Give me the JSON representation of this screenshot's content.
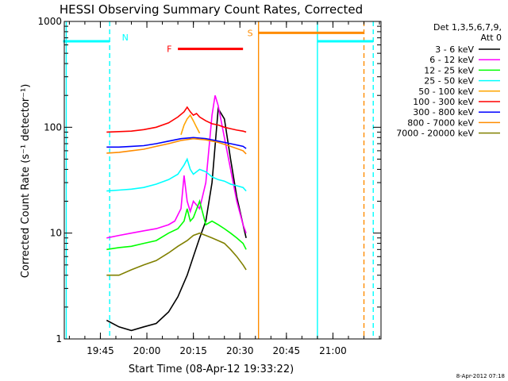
{
  "chart_data": {
    "type": "line",
    "title": "HESSI Observing Summary Count Rates, Corrected",
    "xlabel": "Start Time (08-Apr-12 19:33:22)",
    "ylabel": "Corrected Count Rate (s⁻¹ detector⁻¹)",
    "y_scale": "log",
    "ylim": [
      1,
      1000
    ],
    "xlim": [
      "19:33:22",
      "21:15:30"
    ],
    "x_ticks": [
      "19:45",
      "20:00",
      "20:15",
      "20:30",
      "20:45",
      "21:00"
    ],
    "y_ticks": [
      "1",
      "10",
      "100",
      "1000"
    ],
    "grid": false,
    "legend_position": "right",
    "legend_header": [
      "Det 1,3,5,6,7,9,",
      "Att 0"
    ],
    "date_stamp": "8-Apr-2012 07:18",
    "series": [
      {
        "name": "3 - 6 keV",
        "color": "#000000",
        "x": [
          "19:47",
          "19:51",
          "19:55",
          "19:59",
          "20:03",
          "20:07",
          "20:10",
          "20:13",
          "20:15",
          "20:17",
          "20:19",
          "20:21",
          "20:23",
          "20:25",
          "20:27",
          "20:29",
          "20:31",
          "20:32"
        ],
        "values": [
          1.5,
          1.3,
          1.2,
          1.3,
          1.4,
          1.8,
          2.5,
          4,
          6,
          9,
          13,
          30,
          150,
          120,
          50,
          22,
          12,
          9
        ]
      },
      {
        "name": "6 - 12 keV",
        "color": "#ff00ff",
        "x": [
          "19:47",
          "19:51",
          "19:55",
          "19:59",
          "20:03",
          "20:07",
          "20:09",
          "20:11",
          "20:12",
          "20:13",
          "20:14",
          "20:15",
          "20:17",
          "20:19",
          "20:21",
          "20:22",
          "20:23",
          "20:25",
          "20:27",
          "20:29",
          "20:31",
          "20:32"
        ],
        "values": [
          9,
          9.5,
          10,
          10.5,
          11,
          12,
          13,
          17,
          35,
          20,
          16,
          20,
          17,
          30,
          130,
          200,
          160,
          80,
          40,
          20,
          12,
          10
        ]
      },
      {
        "name": "12 - 25 keV",
        "color": "#00ff00",
        "x": [
          "19:47",
          "19:51",
          "19:55",
          "19:59",
          "20:03",
          "20:07",
          "20:10",
          "20:12",
          "20:13",
          "20:14",
          "20:15",
          "20:17",
          "20:19",
          "20:21",
          "20:23",
          "20:25",
          "20:27",
          "20:29",
          "20:31",
          "20:32"
        ],
        "values": [
          7,
          7.3,
          7.5,
          8,
          8.5,
          10,
          11,
          13,
          17,
          13,
          14,
          20,
          12,
          13,
          12,
          11,
          10,
          9,
          8,
          7
        ]
      },
      {
        "name": "25 - 50 keV",
        "color": "#00ffff",
        "x": [
          "19:47",
          "19:51",
          "19:55",
          "19:59",
          "20:03",
          "20:07",
          "20:10",
          "20:12",
          "20:13",
          "20:14",
          "20:15",
          "20:17",
          "20:19",
          "20:21",
          "20:23",
          "20:25",
          "20:27",
          "20:29",
          "20:31",
          "20:32"
        ],
        "values": [
          25,
          25.5,
          26,
          27,
          29,
          32,
          36,
          44,
          50,
          40,
          36,
          40,
          38,
          34,
          32,
          31,
          29,
          28,
          27,
          25
        ]
      },
      {
        "name": "50 - 100 keV",
        "color": "#ffa500",
        "x": [
          "20:11",
          "20:12",
          "20:13",
          "20:14",
          "20:15",
          "20:16",
          "20:17"
        ],
        "values": [
          85,
          105,
          120,
          130,
          115,
          100,
          88
        ]
      },
      {
        "name": "100 - 300 keV",
        "color": "#ff0000",
        "x": [
          "19:47",
          "19:51",
          "19:55",
          "19:59",
          "20:03",
          "20:07",
          "20:10",
          "20:12",
          "20:13",
          "20:14",
          "20:15",
          "20:16",
          "20:17",
          "20:19",
          "20:21",
          "20:23",
          "20:25",
          "20:27",
          "20:29",
          "20:31",
          "20:32"
        ],
        "values": [
          90,
          91,
          92,
          95,
          100,
          110,
          125,
          140,
          155,
          140,
          130,
          135,
          125,
          115,
          108,
          105,
          100,
          97,
          94,
          92,
          90
        ]
      },
      {
        "name": "300 - 800 keV",
        "color": "#0000ff",
        "x": [
          "19:47",
          "19:51",
          "19:55",
          "19:59",
          "20:03",
          "20:07",
          "20:11",
          "20:15",
          "20:19",
          "20:23",
          "20:27",
          "20:31",
          "20:32"
        ],
        "values": [
          65,
          65,
          66,
          67,
          70,
          74,
          78,
          80,
          78,
          74,
          70,
          66,
          63
        ]
      },
      {
        "name": "800 - 7000 keV",
        "color": "#ff8c00",
        "x": [
          "19:47",
          "19:51",
          "19:55",
          "19:59",
          "20:03",
          "20:07",
          "20:11",
          "20:15",
          "20:19",
          "20:23",
          "20:27",
          "20:31",
          "20:32"
        ],
        "values": [
          57,
          58,
          60,
          62,
          66,
          70,
          75,
          78,
          76,
          72,
          66,
          60,
          56
        ]
      },
      {
        "name": "7000 - 20000 keV",
        "color": "#808000",
        "x": [
          "19:47",
          "19:51",
          "19:55",
          "19:59",
          "20:03",
          "20:07",
          "20:10",
          "20:13",
          "20:15",
          "20:17",
          "20:19",
          "20:21",
          "20:23",
          "20:25",
          "20:27",
          "20:29",
          "20:31",
          "20:32"
        ],
        "values": [
          4,
          4,
          4.5,
          5,
          5.5,
          6.5,
          7.5,
          8.5,
          9.5,
          10,
          9.5,
          9,
          8.5,
          8,
          7,
          6,
          5,
          4.5
        ]
      }
    ],
    "annotations": [
      {
        "label": "N",
        "color": "#00ffff",
        "segments": [
          [
            "19:33",
            "19:48"
          ],
          [
            "20:55",
            "21:13"
          ]
        ],
        "level": 650
      },
      {
        "label": "F",
        "color": "#ff0000",
        "segments": [
          [
            "20:10",
            "20:31"
          ]
        ],
        "level": 550
      },
      {
        "label": "S",
        "color": "#ff8c00",
        "segments": [
          [
            "20:36",
            "21:10"
          ]
        ],
        "level": 780
      }
    ],
    "vertical_lines": [
      {
        "time": "19:34",
        "color": "#00ffff",
        "style": "solid"
      },
      {
        "time": "19:48",
        "color": "#00ffff",
        "style": "dashed"
      },
      {
        "time": "20:36",
        "color": "#ff8c00",
        "style": "solid"
      },
      {
        "time": "20:55",
        "color": "#00ffff",
        "style": "solid"
      },
      {
        "time": "21:10",
        "color": "#ff8c00",
        "style": "dashed"
      },
      {
        "time": "21:13",
        "color": "#00ffff",
        "style": "dashed"
      }
    ]
  }
}
